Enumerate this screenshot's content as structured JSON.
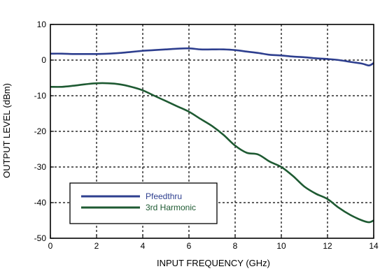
{
  "chart_data": {
    "type": "line",
    "xlabel": "INPUT FREQUENCY (GHz)",
    "ylabel": "OUTPUT LEVEL (dBm)",
    "xlim": [
      0,
      14
    ],
    "ylim": [
      -50,
      10
    ],
    "xticks": [
      0,
      2,
      4,
      6,
      8,
      10,
      12,
      14
    ],
    "yticks": [
      -50,
      -40,
      -30,
      -20,
      -10,
      0,
      10
    ],
    "xtick_labels": [
      "0",
      "2",
      "4",
      "6",
      "8",
      "10",
      "12",
      "14"
    ],
    "ytick_labels": [
      "-50",
      "-40",
      "-30",
      "-20",
      "-10",
      "0",
      "10"
    ],
    "grid": true,
    "legend_position": "bottom-left",
    "series": [
      {
        "name": "Pfeedthru",
        "color": "#2e3f8f",
        "x": [
          0,
          0.5,
          1,
          1.5,
          2,
          2.5,
          3,
          3.5,
          4,
          4.5,
          5,
          5.5,
          6,
          6.5,
          7,
          7.5,
          8,
          8.5,
          9,
          9.5,
          10,
          10.5,
          11,
          11.5,
          12,
          12.5,
          13,
          13.5,
          13.8,
          14
        ],
        "y": [
          1.8,
          1.8,
          1.7,
          1.7,
          1.7,
          1.8,
          2.0,
          2.3,
          2.6,
          2.8,
          3.0,
          3.2,
          3.3,
          3.0,
          3.0,
          3.0,
          2.8,
          2.4,
          2.0,
          1.5,
          1.3,
          1.0,
          0.8,
          0.5,
          0.3,
          0.0,
          -0.5,
          -1.0,
          -1.5,
          -0.8
        ]
      },
      {
        "name": "3rd Harmonic",
        "color": "#1e5a32",
        "x": [
          0,
          0.5,
          1,
          1.5,
          2,
          2.5,
          3,
          3.5,
          4,
          4.5,
          5,
          5.5,
          6,
          6.5,
          7,
          7.5,
          8,
          8.5,
          9,
          9.5,
          10,
          10.5,
          11,
          11.5,
          12,
          12.5,
          13,
          13.5,
          13.8,
          14
        ],
        "y": [
          -7.5,
          -7.5,
          -7.2,
          -6.8,
          -6.5,
          -6.5,
          -6.8,
          -7.5,
          -8.5,
          -10.0,
          -11.5,
          -13.0,
          -14.5,
          -16.5,
          -18.5,
          -21.0,
          -24.0,
          -26.0,
          -26.5,
          -28.5,
          -30.0,
          -32.5,
          -35.5,
          -37.5,
          -39.0,
          -41.5,
          -43.5,
          -45.0,
          -45.5,
          -45.0
        ]
      }
    ]
  }
}
